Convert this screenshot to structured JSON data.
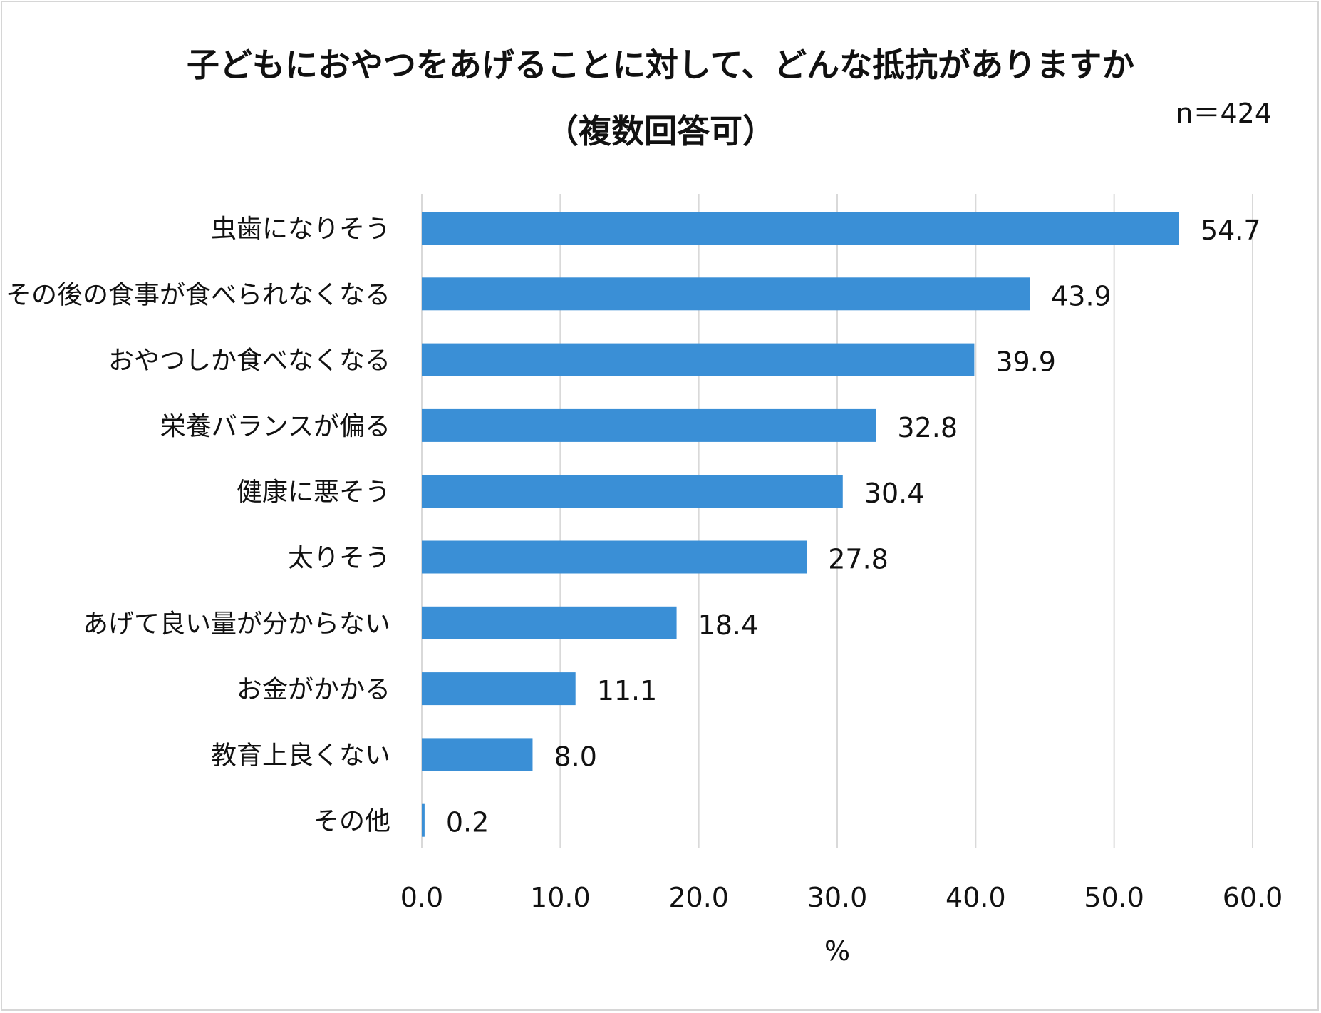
{
  "title_line1": "子どもにおやつをあげることに対して、どんな抵抗がありますか",
  "title_line2": "（複数回答可）",
  "sample_size": "n＝424",
  "colors": {
    "bar": "#3a8fd6",
    "grid": "#d9d9d9",
    "frame": "#d6d6d6"
  },
  "chart_data": {
    "type": "bar",
    "orientation": "horizontal",
    "title": "子どもにおやつをあげることに対して、どんな抵抗がありますか（複数回答可）",
    "categories": [
      "虫歯になりそう",
      "その後の食事が食べられなくなる",
      "おやつしか食べなくなる",
      "栄養バランスが偏る",
      "健康に悪そう",
      "太りそう",
      "あげて良い量が分からない",
      "お金がかかる",
      "教育上良くない",
      "その他"
    ],
    "values": [
      54.7,
      43.9,
      39.9,
      32.8,
      30.4,
      27.8,
      18.4,
      11.1,
      8.0,
      0.2
    ],
    "value_labels": [
      "54.7",
      "43.9",
      "39.9",
      "32.8",
      "30.4",
      "27.8",
      "18.4",
      "11.1",
      "8.0",
      "0.2"
    ],
    "xlim": [
      0,
      60
    ],
    "xticks": [
      "0.0",
      "10.0",
      "20.0",
      "30.0",
      "40.0",
      "50.0",
      "60.0"
    ],
    "xlabel": "%",
    "ylabel": "",
    "grid": true,
    "legend": "none"
  }
}
